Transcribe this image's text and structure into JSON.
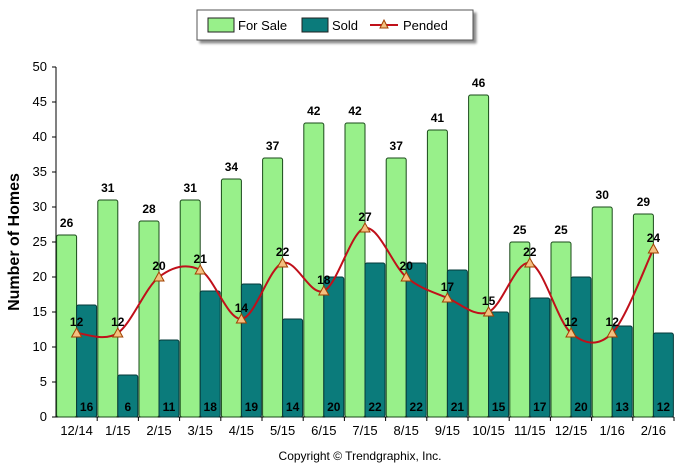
{
  "chart_data": {
    "type": "bar",
    "categories": [
      "12/14",
      "1/15",
      "2/15",
      "3/15",
      "4/15",
      "5/15",
      "6/15",
      "7/15",
      "8/15",
      "9/15",
      "10/15",
      "11/15",
      "12/15",
      "1/16",
      "2/16"
    ],
    "series": [
      {
        "name": "For Sale",
        "type": "bar",
        "color": "#98f08a",
        "values": [
          26,
          31,
          28,
          31,
          34,
          37,
          42,
          42,
          37,
          41,
          46,
          25,
          25,
          30,
          29
        ]
      },
      {
        "name": "Sold",
        "type": "bar",
        "color": "#0b7b7b",
        "values": [
          16,
          6,
          11,
          18,
          19,
          14,
          20,
          22,
          22,
          21,
          15,
          17,
          20,
          13,
          12
        ]
      },
      {
        "name": "Pended",
        "type": "line",
        "color": "#c0101a",
        "values": [
          12,
          12,
          20,
          21,
          14,
          22,
          18,
          27,
          20,
          17,
          15,
          22,
          12,
          12,
          24
        ]
      }
    ],
    "xlabel": "",
    "ylabel": "Number of Homes",
    "ylim": [
      0,
      50
    ],
    "yticks": [
      0,
      5,
      10,
      15,
      20,
      25,
      30,
      35,
      40,
      45,
      50
    ],
    "legend_position": "top-center",
    "grid": false
  },
  "copyright": "Copyright © Trendgraphix, Inc."
}
